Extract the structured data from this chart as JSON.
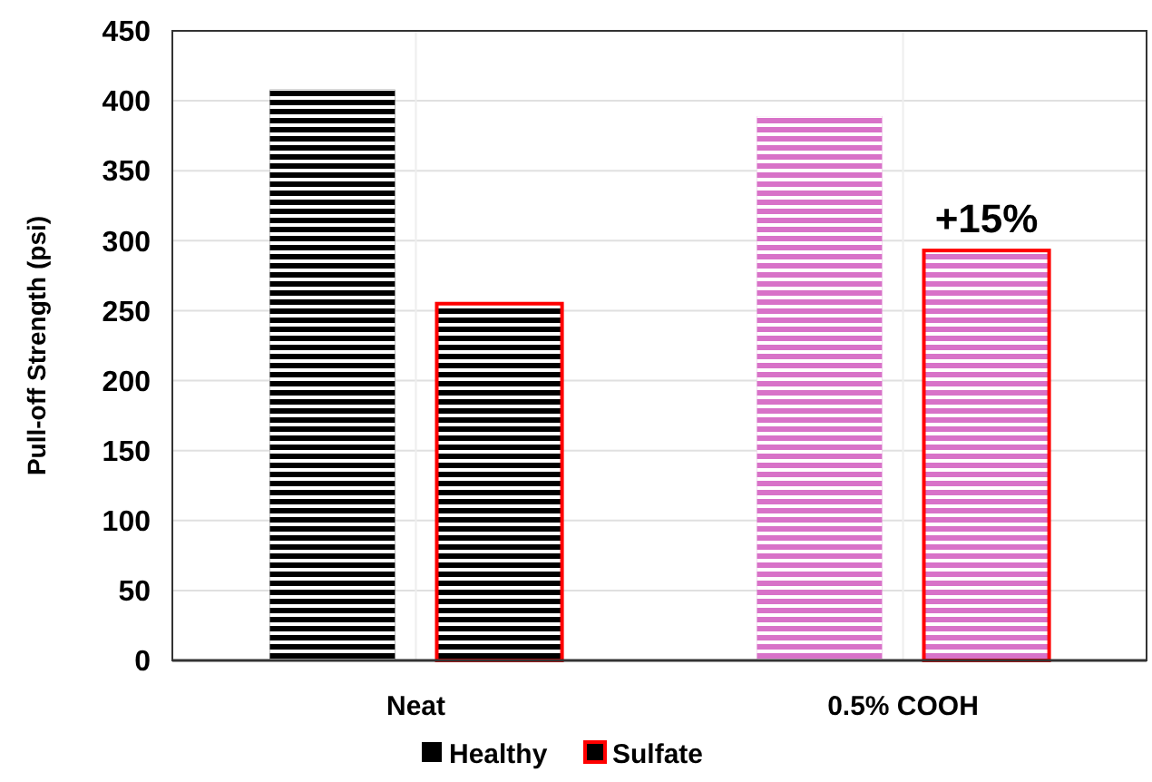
{
  "chart_data": {
    "type": "bar",
    "ylabel": "Pull-off Strength (psi)",
    "categories": [
      "Neat",
      "0.5% COOH"
    ],
    "series": [
      {
        "name": "Healthy",
        "color": "#000000",
        "colors": [
          "#000000",
          "#d872c8"
        ],
        "values": [
          408,
          389
        ]
      },
      {
        "name": "Sulfate",
        "color": "#000000",
        "colors": [
          "#000000",
          "#d872c8"
        ],
        "values": [
          255,
          293
        ]
      }
    ],
    "ylim": [
      0,
      450
    ],
    "yticks": [
      0,
      50,
      100,
      150,
      200,
      250,
      300,
      350,
      400,
      450
    ],
    "grid": true,
    "legend": "bottom",
    "annotations": [
      "+15%"
    ]
  }
}
